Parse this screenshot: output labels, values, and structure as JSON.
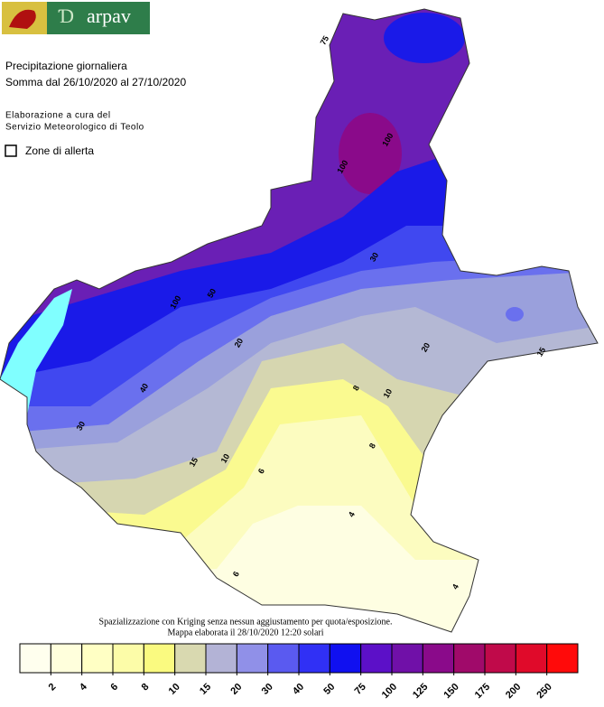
{
  "header": {
    "logo_text": "arpav",
    "title": "Precipitazione giornaliera",
    "subtitle": "Somma dal 26/10/2020 al 27/10/2020",
    "credit_line1": "Elaborazione a cura del",
    "credit_line2": "Servizio Meteorologico di Teolo",
    "checkbox_label": "Zone di allerta"
  },
  "footer": {
    "line1": "Spazializzazione con Kriging senza nessun aggiustamento per quota/esposizione.",
    "line2": "Mappa elaborata il 28/10/2020 12:20 solari"
  },
  "legend": {
    "ticks": [
      2,
      4,
      6,
      8,
      10,
      15,
      20,
      30,
      40,
      50,
      75,
      100,
      125,
      150,
      175,
      200,
      250
    ],
    "colors": [
      "#ffffee",
      "#ffffdc",
      "#ffffc4",
      "#fcfca8",
      "#fafa80",
      "#d9d9b0",
      "#b3b3d6",
      "#9090e8",
      "#5a5af0",
      "#3030f5",
      "#1010f0",
      "#5c10c8",
      "#7010a8",
      "#8a0a8a",
      "#a00a6a",
      "#c00a4a",
      "#e00a2a",
      "#ff0a0a"
    ]
  },
  "contour_labels": [
    "100",
    "100",
    "100",
    "75",
    "50",
    "40",
    "30",
    "20",
    "15",
    "15",
    "10",
    "10",
    "8",
    "8",
    "6",
    "6",
    "4",
    "4",
    "20",
    "30"
  ]
}
